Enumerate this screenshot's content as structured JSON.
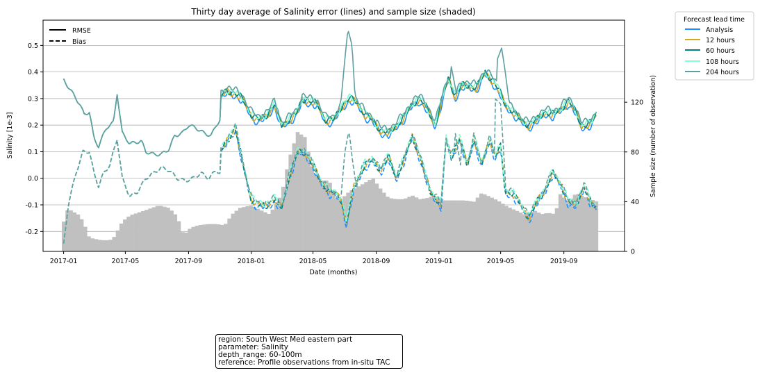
{
  "chart_data": {
    "type": "line",
    "title": "Thirty day average of Salinity error (lines) and sample size (shaded)",
    "xlabel": "Date (months)",
    "ylabel": "Salinity [1e-3]",
    "y2label": "Sample size (number of observation)",
    "xlim": [
      "2016-11-22",
      "2019-12-28"
    ],
    "ylim": [
      -0.275,
      0.595
    ],
    "y2lim": [
      0,
      186
    ],
    "x_ticks": [
      "2017-01",
      "2017-05",
      "2017-09",
      "2018-01",
      "2018-05",
      "2018-09",
      "2019-01",
      "2019-05",
      "2019-09"
    ],
    "y_ticks": [
      "-0.2",
      "-0.1",
      "0.0",
      "0.1",
      "0.2",
      "0.3",
      "0.4",
      "0.5"
    ],
    "y_tick_values": [
      -0.2,
      -0.1,
      0.0,
      0.1,
      0.2,
      0.3,
      0.4,
      0.5
    ],
    "y2_ticks": [
      "0",
      "40",
      "80",
      "120"
    ],
    "y2_tick_values": [
      0,
      40,
      80,
      120
    ],
    "grid": "horizontal",
    "style_legend": {
      "placement": "top-left",
      "entries": [
        {
          "label": "RMSE",
          "dash": "solid"
        },
        {
          "label": "Bias",
          "dash": "dashed"
        }
      ]
    },
    "legend": {
      "title": "Forecast lead time",
      "placement": "outside-right"
    },
    "series": [
      {
        "name": "Analysis",
        "color": "#1e90ff",
        "lead_index": 0
      },
      {
        "name": "12 hours",
        "color": "#daa520",
        "lead_index": 1
      },
      {
        "name": "60 hours",
        "color": "#008080",
        "lead_index": 2
      },
      {
        "name": "108 hours",
        "color": "#7fffd4",
        "lead_index": 3
      },
      {
        "name": "204 hours",
        "color": "#5f9ea0",
        "lead_index": 4
      }
    ],
    "rmse_shared": [
      [
        "2017-01-01",
        0.37
      ],
      [
        "2017-01-15",
        0.33
      ],
      [
        "2017-02-01",
        0.28
      ],
      [
        "2017-02-10",
        0.24
      ],
      [
        "2017-02-20",
        0.25
      ],
      [
        "2017-03-01",
        0.15
      ],
      [
        "2017-03-10",
        0.12
      ],
      [
        "2017-03-25",
        0.19
      ],
      [
        "2017-04-08",
        0.21
      ],
      [
        "2017-04-15",
        0.32
      ],
      [
        "2017-04-25",
        0.17
      ],
      [
        "2017-05-10",
        0.13
      ],
      [
        "2017-06-01",
        0.14
      ],
      [
        "2017-06-10",
        0.1
      ],
      [
        "2017-06-25",
        0.09
      ],
      [
        "2017-07-10",
        0.09
      ],
      [
        "2017-07-25",
        0.11
      ],
      [
        "2017-08-05",
        0.16
      ],
      [
        "2017-08-20",
        0.17
      ],
      [
        "2017-09-01",
        0.2
      ],
      [
        "2017-09-15",
        0.19
      ],
      [
        "2017-10-01",
        0.17
      ],
      [
        "2017-10-15",
        0.16
      ],
      [
        "2017-10-25",
        0.2
      ],
      [
        "2017-11-01",
        0.22
      ]
    ],
    "rmse_split": [
      [
        "2017-11-02",
        0.31
      ],
      [
        "2017-11-15",
        0.33
      ],
      [
        "2017-12-01",
        0.32
      ],
      [
        "2017-12-15",
        0.3
      ],
      [
        "2018-01-01",
        0.24
      ],
      [
        "2018-01-15",
        0.22
      ],
      [
        "2018-02-01",
        0.24
      ],
      [
        "2018-02-15",
        0.28
      ],
      [
        "2018-03-01",
        0.2
      ],
      [
        "2018-03-15",
        0.22
      ],
      [
        "2018-04-01",
        0.25
      ],
      [
        "2018-04-10",
        0.3
      ],
      [
        "2018-04-25",
        0.29
      ],
      [
        "2018-05-10",
        0.28
      ],
      [
        "2018-05-25",
        0.22
      ],
      [
        "2018-06-10",
        0.22
      ],
      [
        "2018-06-25",
        0.27
      ],
      [
        "2018-07-10",
        0.3
      ],
      [
        "2018-07-25",
        0.29
      ],
      [
        "2018-08-10",
        0.24
      ],
      [
        "2018-08-25",
        0.22
      ],
      [
        "2018-09-10",
        0.18
      ],
      [
        "2018-09-25",
        0.17
      ],
      [
        "2018-10-10",
        0.2
      ],
      [
        "2018-10-25",
        0.23
      ],
      [
        "2018-11-10",
        0.28
      ],
      [
        "2018-11-25",
        0.3
      ],
      [
        "2018-12-10",
        0.26
      ],
      [
        "2018-12-25",
        0.2
      ],
      [
        "2019-01-10",
        0.32
      ],
      [
        "2019-01-20",
        0.38
      ],
      [
        "2019-02-01",
        0.31
      ],
      [
        "2019-02-15",
        0.35
      ],
      [
        "2019-03-01",
        0.35
      ],
      [
        "2019-03-15",
        0.34
      ],
      [
        "2019-04-01",
        0.4
      ],
      [
        "2019-04-15",
        0.37
      ],
      [
        "2019-05-01",
        0.32
      ],
      [
        "2019-05-10",
        0.28
      ],
      [
        "2019-05-25",
        0.25
      ],
      [
        "2019-06-10",
        0.22
      ],
      [
        "2019-06-25",
        0.2
      ],
      [
        "2019-07-10",
        0.22
      ],
      [
        "2019-07-25",
        0.25
      ],
      [
        "2019-08-10",
        0.24
      ],
      [
        "2019-08-25",
        0.26
      ],
      [
        "2019-09-10",
        0.29
      ],
      [
        "2019-09-25",
        0.25
      ],
      [
        "2019-10-05",
        0.2
      ],
      [
        "2019-10-15",
        0.2
      ],
      [
        "2019-10-25",
        0.21
      ],
      [
        "2019-11-04",
        0.25
      ]
    ],
    "rmse_offsets": [
      -0.012,
      -0.004,
      0.0,
      0.004,
      0.012
    ],
    "rmse_spikes_204h": [
      [
        "2018-06-25",
        0.3
      ],
      [
        "2018-07-02",
        0.45
      ],
      [
        "2018-07-08",
        0.56
      ],
      [
        "2018-07-16",
        0.5
      ],
      [
        "2018-07-22",
        0.3
      ],
      [
        "2019-01-25",
        0.42
      ],
      [
        "2019-02-05",
        0.31
      ],
      [
        "2019-04-25",
        0.45
      ],
      [
        "2019-05-03",
        0.49
      ],
      [
        "2019-05-10",
        0.4
      ],
      [
        "2019-05-18",
        0.28
      ]
    ],
    "bias_shared": [
      [
        "2017-01-01",
        -0.25
      ],
      [
        "2017-01-10",
        -0.1
      ],
      [
        "2017-01-25",
        0.02
      ],
      [
        "2017-02-08",
        0.1
      ],
      [
        "2017-02-20",
        0.1
      ],
      [
        "2017-03-01",
        0.02
      ],
      [
        "2017-03-10",
        -0.03
      ],
      [
        "2017-03-20",
        0.02
      ],
      [
        "2017-04-01",
        0.05
      ],
      [
        "2017-04-15",
        0.15
      ],
      [
        "2017-04-25",
        0.0
      ],
      [
        "2017-05-10",
        -0.07
      ],
      [
        "2017-05-25",
        -0.05
      ],
      [
        "2017-06-10",
        0.0
      ],
      [
        "2017-06-25",
        0.02
      ],
      [
        "2017-07-10",
        0.04
      ],
      [
        "2017-07-25",
        0.03
      ],
      [
        "2017-08-10",
        0.0
      ],
      [
        "2017-08-25",
        -0.01
      ],
      [
        "2017-09-10",
        0.0
      ],
      [
        "2017-09-25",
        0.02
      ],
      [
        "2017-10-10",
        0.0
      ],
      [
        "2017-10-25",
        0.03
      ],
      [
        "2017-11-01",
        0.02
      ]
    ],
    "bias_split": [
      [
        "2017-11-02",
        0.1
      ],
      [
        "2017-11-15",
        0.14
      ],
      [
        "2017-12-01",
        0.19
      ],
      [
        "2017-12-15",
        0.06
      ],
      [
        "2018-01-01",
        -0.08
      ],
      [
        "2018-01-15",
        -0.1
      ],
      [
        "2018-02-01",
        -0.1
      ],
      [
        "2018-02-15",
        -0.08
      ],
      [
        "2018-03-01",
        -0.11
      ],
      [
        "2018-03-15",
        0.0
      ],
      [
        "2018-04-01",
        0.1
      ],
      [
        "2018-04-15",
        0.1
      ],
      [
        "2018-05-01",
        0.05
      ],
      [
        "2018-05-15",
        -0.01
      ],
      [
        "2018-06-01",
        -0.05
      ],
      [
        "2018-06-15",
        -0.06
      ],
      [
        "2018-06-25",
        -0.08
      ],
      [
        "2018-07-05",
        -0.17
      ],
      [
        "2018-07-20",
        -0.03
      ],
      [
        "2018-08-10",
        0.05
      ],
      [
        "2018-08-25",
        0.07
      ],
      [
        "2018-09-10",
        0.03
      ],
      [
        "2018-09-25",
        0.08
      ],
      [
        "2018-10-10",
        0.0
      ],
      [
        "2018-10-25",
        0.07
      ],
      [
        "2018-11-10",
        0.16
      ],
      [
        "2018-11-25",
        0.08
      ],
      [
        "2018-12-15",
        -0.05
      ],
      [
        "2019-01-05",
        -0.1
      ],
      [
        "2019-01-15",
        0.15
      ],
      [
        "2019-01-25",
        0.08
      ],
      [
        "2019-02-10",
        0.15
      ],
      [
        "2019-02-25",
        0.05
      ],
      [
        "2019-03-10",
        0.15
      ],
      [
        "2019-03-25",
        0.05
      ],
      [
        "2019-04-10",
        0.15
      ],
      [
        "2019-04-20",
        0.08
      ],
      [
        "2019-05-01",
        0.12
      ],
      [
        "2019-05-10",
        -0.05
      ],
      [
        "2019-05-25",
        -0.06
      ],
      [
        "2019-06-10",
        -0.1
      ],
      [
        "2019-06-25",
        -0.15
      ],
      [
        "2019-07-10",
        -0.09
      ],
      [
        "2019-07-25",
        -0.05
      ],
      [
        "2019-08-10",
        0.02
      ],
      [
        "2019-08-25",
        -0.02
      ],
      [
        "2019-09-10",
        -0.09
      ],
      [
        "2019-09-25",
        -0.1
      ],
      [
        "2019-10-10",
        -0.03
      ],
      [
        "2019-10-25",
        -0.1
      ],
      [
        "2019-11-04",
        -0.11
      ]
    ],
    "bias_offsets": [
      -0.01,
      0.0,
      0.0,
      0.008,
      0.006
    ],
    "bias_spikes_204h": [
      [
        "2018-06-25",
        -0.06
      ],
      [
        "2018-07-02",
        0.1
      ],
      [
        "2018-07-10",
        0.18
      ],
      [
        "2018-07-18",
        0.05
      ],
      [
        "2018-07-26",
        -0.05
      ],
      [
        "2019-02-01",
        0.18
      ],
      [
        "2019-02-12",
        0.05
      ],
      [
        "2019-04-20",
        0.3
      ],
      [
        "2019-05-01",
        0.28
      ],
      [
        "2019-05-10",
        0.0
      ]
    ],
    "sample_size": [
      [
        "2017-01-01",
        24
      ],
      [
        "2017-01-08",
        33
      ],
      [
        "2017-01-15",
        33
      ],
      [
        "2017-02-01",
        29
      ],
      [
        "2017-02-10",
        22
      ],
      [
        "2017-02-20",
        11
      ],
      [
        "2017-03-15",
        9
      ],
      [
        "2017-04-01",
        9
      ],
      [
        "2017-04-10",
        12
      ],
      [
        "2017-04-25",
        24
      ],
      [
        "2017-05-10",
        29
      ],
      [
        "2017-05-25",
        31
      ],
      [
        "2017-06-15",
        34
      ],
      [
        "2017-07-05",
        37
      ],
      [
        "2017-07-25",
        35
      ],
      [
        "2017-08-10",
        28
      ],
      [
        "2017-08-22",
        13
      ],
      [
        "2017-09-05",
        19
      ],
      [
        "2017-09-20",
        21
      ],
      [
        "2017-10-10",
        22
      ],
      [
        "2017-10-25",
        22
      ],
      [
        "2017-11-10",
        21
      ],
      [
        "2017-11-25",
        30
      ],
      [
        "2017-12-10",
        35
      ],
      [
        "2018-01-01",
        37
      ],
      [
        "2018-01-20",
        33
      ],
      [
        "2018-02-05",
        30
      ],
      [
        "2018-02-15",
        36
      ],
      [
        "2018-03-01",
        46
      ],
      [
        "2018-03-15",
        74
      ],
      [
        "2018-04-01",
        96
      ],
      [
        "2018-04-15",
        92
      ],
      [
        "2018-05-01",
        65
      ],
      [
        "2018-05-15",
        57
      ],
      [
        "2018-06-01",
        57
      ],
      [
        "2018-06-20",
        40
      ],
      [
        "2018-07-10",
        48
      ],
      [
        "2018-08-01",
        53
      ],
      [
        "2018-08-25",
        59
      ],
      [
        "2018-09-10",
        50
      ],
      [
        "2018-09-25",
        43
      ],
      [
        "2018-10-10",
        42
      ],
      [
        "2018-10-25",
        42
      ],
      [
        "2018-11-10",
        45
      ],
      [
        "2018-11-25",
        42
      ],
      [
        "2018-12-10",
        43
      ],
      [
        "2018-12-25",
        45
      ],
      [
        "2019-01-10",
        41
      ],
      [
        "2019-02-01",
        41
      ],
      [
        "2019-02-20",
        41
      ],
      [
        "2019-03-10",
        40
      ],
      [
        "2019-03-25",
        47
      ],
      [
        "2019-04-10",
        44
      ],
      [
        "2019-04-25",
        41
      ],
      [
        "2019-05-10",
        37
      ],
      [
        "2019-05-25",
        34
      ],
      [
        "2019-06-10",
        31
      ],
      [
        "2019-06-20",
        29
      ],
      [
        "2019-07-05",
        33
      ],
      [
        "2019-07-20",
        30
      ],
      [
        "2019-08-01",
        31
      ],
      [
        "2019-08-15",
        30
      ],
      [
        "2019-08-25",
        46
      ],
      [
        "2019-09-10",
        40
      ],
      [
        "2019-09-25",
        47
      ],
      [
        "2019-10-10",
        44
      ],
      [
        "2019-11-04",
        40
      ]
    ],
    "sample_color": "#c0c0c0"
  },
  "info_box": {
    "line1": "region: South West Med eastern part",
    "line2": "parameter: Salinity",
    "line3": "depth_range: 60-100m",
    "line4": "reference: Profile observations from in-situ TAC"
  }
}
